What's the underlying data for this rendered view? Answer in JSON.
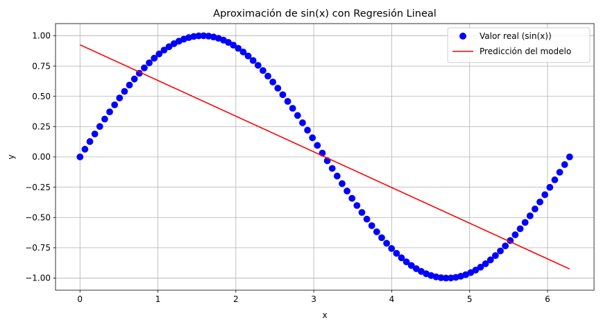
{
  "chart_data": {
    "type": "scatter",
    "title": "Aproximación de sin(x) con Regresión Lineal",
    "xlabel": "x",
    "ylabel": "y",
    "xlim": [
      -0.314,
      6.597
    ],
    "ylim": [
      -1.1,
      1.1
    ],
    "x_ticks": [
      0,
      1,
      2,
      3,
      4,
      5,
      6
    ],
    "x_tick_labels": [
      "0",
      "1",
      "2",
      "3",
      "4",
      "5",
      "6"
    ],
    "y_ticks": [
      -1.0,
      -0.75,
      -0.5,
      -0.25,
      0.0,
      0.25,
      0.5,
      0.75,
      1.0
    ],
    "y_tick_labels": [
      "−1.00",
      "−0.75",
      "−0.50",
      "−0.25",
      "0.00",
      "0.25",
      "0.50",
      "0.75",
      "1.00"
    ],
    "grid": true,
    "legend_position": "top-right",
    "series": [
      {
        "name": "Valor real (sin(x))",
        "kind": "scatter",
        "color": "#0000ff",
        "function": "sin(x)",
        "x_start": 0,
        "x_end": 6.2832,
        "count": 100
      },
      {
        "name": "Predicción del modelo",
        "kind": "line",
        "color": "#ff0000",
        "x": [
          0,
          6.2832
        ],
        "y": [
          0.925,
          -0.925
        ]
      }
    ]
  }
}
